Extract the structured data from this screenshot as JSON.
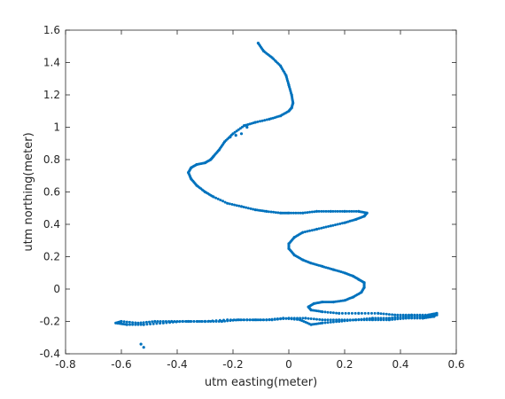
{
  "chart_data": {
    "type": "scatter",
    "title": "",
    "xlabel": "utm easting(meter)",
    "ylabel": "utm northing(meter)",
    "xlim": [
      -0.8,
      0.6
    ],
    "ylim": [
      -0.4,
      1.6
    ],
    "xticks": [
      -0.8,
      -0.6,
      -0.4,
      -0.2,
      0,
      0.2,
      0.4,
      0.6
    ],
    "xtick_labels": [
      "-0.8",
      "-0.6",
      "-0.4",
      "-0.2",
      "0",
      "0.2",
      "0.4",
      "0.6"
    ],
    "yticks": [
      -0.4,
      -0.2,
      0,
      0.2,
      0.4,
      0.6,
      0.8,
      1,
      1.2,
      1.4,
      1.6
    ],
    "ytick_labels": [
      "-0.4",
      "-0.2",
      "0",
      "0.2",
      "0.4",
      "0.6",
      "0.8",
      "1",
      "1.2",
      "1.4",
      "1.6"
    ],
    "grid": false,
    "marker_color": "#0072BD",
    "series": [
      {
        "x": [
          -0.11,
          -0.09,
          -0.06,
          -0.03,
          -0.01,
          0.0,
          0.01,
          0.015,
          0.01,
          0.0,
          -0.03,
          -0.07,
          -0.12,
          -0.16,
          -0.2,
          -0.23,
          -0.25,
          -0.27,
          -0.28,
          -0.3,
          -0.33,
          -0.35,
          -0.36,
          -0.35,
          -0.33,
          -0.3,
          -0.27,
          -0.22,
          -0.17,
          -0.12,
          -0.08,
          -0.03,
          0.0,
          0.05,
          0.1,
          0.15,
          0.2,
          0.25,
          0.28,
          0.27,
          0.24,
          0.2,
          0.15,
          0.1,
          0.05,
          0.02,
          -0.0,
          0.0,
          0.02,
          0.05,
          0.08,
          0.12,
          0.16,
          0.2,
          0.23,
          0.25,
          0.27,
          0.27,
          0.26,
          0.23,
          0.2,
          0.16,
          0.12,
          0.09,
          0.07,
          0.08,
          0.12,
          0.18,
          0.25,
          0.32,
          0.38,
          0.44,
          0.5,
          0.53,
          0.52,
          0.48,
          0.42,
          0.36,
          0.3,
          0.24,
          0.18,
          0.12,
          0.06,
          0.0,
          -0.06,
          -0.12,
          -0.18,
          -0.24,
          -0.3,
          -0.36,
          -0.42,
          -0.48,
          -0.54,
          -0.6,
          -0.62,
          -0.58,
          -0.52,
          -0.45,
          -0.38,
          -0.3,
          -0.22,
          -0.15,
          -0.08,
          -0.02,
          0.04,
          0.08,
          0.12,
          0.18,
          0.24,
          0.3,
          0.36,
          0.42,
          0.48,
          0.53
        ],
        "y": [
          1.52,
          1.47,
          1.43,
          1.38,
          1.32,
          1.26,
          1.2,
          1.15,
          1.12,
          1.1,
          1.07,
          1.05,
          1.03,
          1.01,
          0.96,
          0.91,
          0.86,
          0.82,
          0.8,
          0.78,
          0.77,
          0.75,
          0.72,
          0.68,
          0.64,
          0.6,
          0.57,
          0.53,
          0.51,
          0.49,
          0.48,
          0.47,
          0.47,
          0.47,
          0.48,
          0.48,
          0.48,
          0.48,
          0.47,
          0.45,
          0.43,
          0.41,
          0.39,
          0.37,
          0.35,
          0.32,
          0.28,
          0.25,
          0.21,
          0.18,
          0.16,
          0.14,
          0.12,
          0.1,
          0.08,
          0.06,
          0.04,
          0.01,
          -0.02,
          -0.05,
          -0.07,
          -0.08,
          -0.08,
          -0.09,
          -0.11,
          -0.13,
          -0.14,
          -0.15,
          -0.15,
          -0.15,
          -0.16,
          -0.16,
          -0.16,
          -0.15,
          -0.17,
          -0.18,
          -0.18,
          -0.19,
          -0.19,
          -0.19,
          -0.19,
          -0.19,
          -0.18,
          -0.18,
          -0.19,
          -0.19,
          -0.19,
          -0.2,
          -0.2,
          -0.2,
          -0.2,
          -0.2,
          -0.21,
          -0.2,
          -0.21,
          -0.22,
          -0.22,
          -0.21,
          -0.2,
          -0.2,
          -0.19,
          -0.19,
          -0.19,
          -0.18,
          -0.19,
          -0.22,
          -0.21,
          -0.2,
          -0.19,
          -0.18,
          -0.18,
          -0.17,
          -0.17,
          -0.16
        ]
      },
      {
        "x": [
          -0.16,
          -0.15,
          -0.17,
          -0.19,
          -0.21,
          -0.53,
          -0.52
        ],
        "y": [
          1.01,
          1.0,
          0.96,
          0.95,
          0.94,
          -0.34,
          -0.36
        ]
      }
    ]
  }
}
